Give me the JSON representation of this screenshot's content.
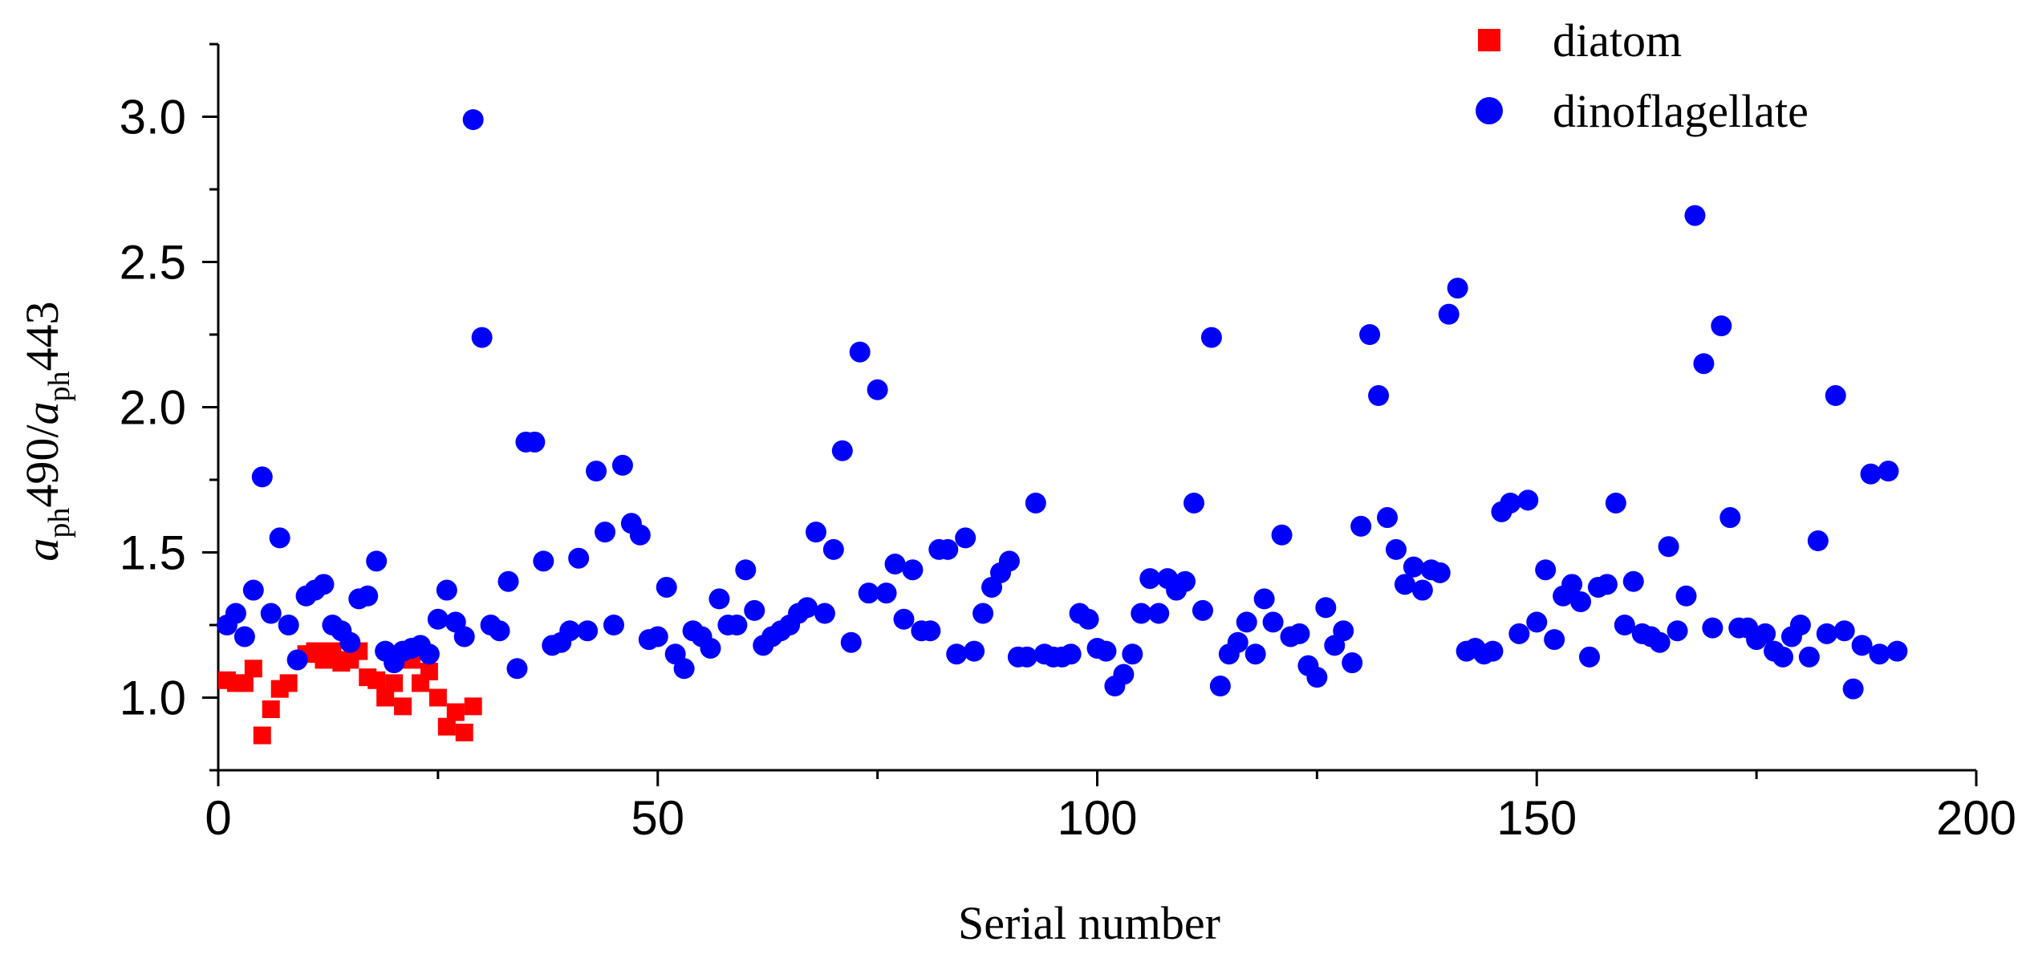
{
  "chart_data": {
    "type": "scatter",
    "xlabel": "Serial number",
    "ylabel": {
      "prefix_italic": "a",
      "prefix_sub": "ph",
      "middle": "490/",
      "denom_italic": "a",
      "denom_sub": "ph",
      "suffix": "443"
    },
    "xlim": [
      0,
      200
    ],
    "ylim": [
      0.75,
      3.25
    ],
    "xticks": [
      0,
      50,
      100,
      150,
      200
    ],
    "xtick_labels": [
      "0",
      "50",
      "100",
      "150",
      "200"
    ],
    "yticks": [
      1.0,
      1.5,
      2.0,
      2.5,
      3.0
    ],
    "ytick_labels": [
      "1.0",
      "1.5",
      "2.0",
      "2.5",
      "3.0"
    ],
    "grid": false,
    "legend_position": "top-right",
    "colors": {
      "diatom": "#ff0000",
      "dinoflagellate": "#0000ff"
    },
    "series": [
      {
        "name": "diatom",
        "marker": "square",
        "color": "#ff0000",
        "points": [
          [
            1,
            1.06
          ],
          [
            2,
            1.05
          ],
          [
            3,
            1.05
          ],
          [
            4,
            1.1
          ],
          [
            5,
            0.87
          ],
          [
            6,
            0.96
          ],
          [
            7,
            1.03
          ],
          [
            8,
            1.05
          ],
          [
            10,
            1.15
          ],
          [
            11,
            1.16
          ],
          [
            12,
            1.13
          ],
          [
            13,
            1.16
          ],
          [
            14,
            1.12
          ],
          [
            15,
            1.13
          ],
          [
            16,
            1.16
          ],
          [
            17,
            1.07
          ],
          [
            18,
            1.06
          ],
          [
            19,
            1.0
          ],
          [
            20,
            1.05
          ],
          [
            21,
            0.97
          ],
          [
            22,
            1.13
          ],
          [
            23,
            1.05
          ],
          [
            24,
            1.09
          ],
          [
            25,
            1.0
          ],
          [
            26,
            0.9
          ],
          [
            27,
            0.95
          ],
          [
            28,
            0.88
          ],
          [
            29,
            0.97
          ]
        ]
      },
      {
        "name": "dinoflagellate",
        "marker": "circle",
        "color": "#0000ff",
        "points": [
          [
            1,
            1.25
          ],
          [
            2,
            1.29
          ],
          [
            3,
            1.21
          ],
          [
            4,
            1.37
          ],
          [
            5,
            1.76
          ],
          [
            6,
            1.29
          ],
          [
            7,
            1.55
          ],
          [
            8,
            1.25
          ],
          [
            9,
            1.13
          ],
          [
            10,
            1.35
          ],
          [
            11,
            1.37
          ],
          [
            12,
            1.39
          ],
          [
            13,
            1.25
          ],
          [
            14,
            1.23
          ],
          [
            15,
            1.19
          ],
          [
            16,
            1.34
          ],
          [
            17,
            1.35
          ],
          [
            18,
            1.47
          ],
          [
            19,
            1.16
          ],
          [
            20,
            1.12
          ],
          [
            21,
            1.16
          ],
          [
            22,
            1.17
          ],
          [
            23,
            1.18
          ],
          [
            24,
            1.15
          ],
          [
            25,
            1.27
          ],
          [
            26,
            1.37
          ],
          [
            27,
            1.26
          ],
          [
            28,
            1.21
          ],
          [
            29,
            2.99
          ],
          [
            30,
            2.24
          ],
          [
            31,
            1.25
          ],
          [
            32,
            1.23
          ],
          [
            33,
            1.4
          ],
          [
            34,
            1.1
          ],
          [
            35,
            1.88
          ],
          [
            36,
            1.88
          ],
          [
            37,
            1.47
          ],
          [
            38,
            1.18
          ],
          [
            39,
            1.19
          ],
          [
            40,
            1.23
          ],
          [
            41,
            1.48
          ],
          [
            42,
            1.23
          ],
          [
            43,
            1.78
          ],
          [
            44,
            1.57
          ],
          [
            45,
            1.25
          ],
          [
            46,
            1.8
          ],
          [
            47,
            1.6
          ],
          [
            48,
            1.56
          ],
          [
            49,
            1.2
          ],
          [
            50,
            1.21
          ],
          [
            51,
            1.38
          ],
          [
            52,
            1.15
          ],
          [
            53,
            1.1
          ],
          [
            54,
            1.23
          ],
          [
            55,
            1.21
          ],
          [
            56,
            1.17
          ],
          [
            57,
            1.34
          ],
          [
            58,
            1.25
          ],
          [
            59,
            1.25
          ],
          [
            60,
            1.44
          ],
          [
            61,
            1.3
          ],
          [
            62,
            1.18
          ],
          [
            63,
            1.21
          ],
          [
            64,
            1.23
          ],
          [
            65,
            1.25
          ],
          [
            66,
            1.29
          ],
          [
            67,
            1.31
          ],
          [
            68,
            1.57
          ],
          [
            69,
            1.29
          ],
          [
            70,
            1.51
          ],
          [
            71,
            1.85
          ],
          [
            72,
            1.19
          ],
          [
            73,
            2.19
          ],
          [
            74,
            1.36
          ],
          [
            75,
            2.06
          ],
          [
            76,
            1.36
          ],
          [
            77,
            1.46
          ],
          [
            78,
            1.27
          ],
          [
            79,
            1.44
          ],
          [
            80,
            1.23
          ],
          [
            81,
            1.23
          ],
          [
            82,
            1.51
          ],
          [
            83,
            1.51
          ],
          [
            84,
            1.15
          ],
          [
            85,
            1.55
          ],
          [
            86,
            1.16
          ],
          [
            87,
            1.29
          ],
          [
            88,
            1.38
          ],
          [
            89,
            1.43
          ],
          [
            90,
            1.47
          ],
          [
            91,
            1.14
          ],
          [
            92,
            1.14
          ],
          [
            93,
            1.67
          ],
          [
            94,
            1.15
          ],
          [
            95,
            1.14
          ],
          [
            96,
            1.14
          ],
          [
            97,
            1.15
          ],
          [
            98,
            1.29
          ],
          [
            99,
            1.27
          ],
          [
            100,
            1.17
          ],
          [
            101,
            1.16
          ],
          [
            102,
            1.04
          ],
          [
            103,
            1.08
          ],
          [
            104,
            1.15
          ],
          [
            105,
            1.29
          ],
          [
            106,
            1.41
          ],
          [
            107,
            1.29
          ],
          [
            108,
            1.41
          ],
          [
            109,
            1.37
          ],
          [
            110,
            1.4
          ],
          [
            111,
            1.67
          ],
          [
            112,
            1.3
          ],
          [
            113,
            2.24
          ],
          [
            114,
            1.04
          ],
          [
            115,
            1.15
          ],
          [
            116,
            1.19
          ],
          [
            117,
            1.26
          ],
          [
            118,
            1.15
          ],
          [
            119,
            1.34
          ],
          [
            120,
            1.26
          ],
          [
            121,
            1.56
          ],
          [
            122,
            1.21
          ],
          [
            123,
            1.22
          ],
          [
            124,
            1.11
          ],
          [
            125,
            1.07
          ],
          [
            126,
            1.31
          ],
          [
            127,
            1.18
          ],
          [
            128,
            1.23
          ],
          [
            129,
            1.12
          ],
          [
            130,
            1.59
          ],
          [
            131,
            2.25
          ],
          [
            132,
            2.04
          ],
          [
            133,
            1.62
          ],
          [
            134,
            1.51
          ],
          [
            135,
            1.39
          ],
          [
            136,
            1.45
          ],
          [
            137,
            1.37
          ],
          [
            138,
            1.44
          ],
          [
            139,
            1.43
          ],
          [
            140,
            2.32
          ],
          [
            141,
            2.41
          ],
          [
            142,
            1.16
          ],
          [
            143,
            1.17
          ],
          [
            144,
            1.15
          ],
          [
            145,
            1.16
          ],
          [
            146,
            1.64
          ],
          [
            147,
            1.67
          ],
          [
            148,
            1.22
          ],
          [
            149,
            1.68
          ],
          [
            150,
            1.26
          ],
          [
            151,
            1.44
          ],
          [
            152,
            1.2
          ],
          [
            153,
            1.35
          ],
          [
            154,
            1.39
          ],
          [
            155,
            1.33
          ],
          [
            156,
            1.14
          ],
          [
            157,
            1.38
          ],
          [
            158,
            1.39
          ],
          [
            159,
            1.67
          ],
          [
            160,
            1.25
          ],
          [
            161,
            1.4
          ],
          [
            162,
            1.22
          ],
          [
            163,
            1.21
          ],
          [
            164,
            1.19
          ],
          [
            165,
            1.52
          ],
          [
            166,
            1.23
          ],
          [
            167,
            1.35
          ],
          [
            168,
            2.66
          ],
          [
            169,
            2.15
          ],
          [
            170,
            1.24
          ],
          [
            171,
            2.28
          ],
          [
            172,
            1.62
          ],
          [
            173,
            1.24
          ],
          [
            174,
            1.24
          ],
          [
            175,
            1.2
          ],
          [
            176,
            1.22
          ],
          [
            177,
            1.16
          ],
          [
            178,
            1.14
          ],
          [
            179,
            1.21
          ],
          [
            180,
            1.25
          ],
          [
            181,
            1.14
          ],
          [
            182,
            1.54
          ],
          [
            183,
            1.22
          ],
          [
            184,
            2.04
          ],
          [
            185,
            1.23
          ],
          [
            186,
            1.03
          ],
          [
            187,
            1.18
          ],
          [
            188,
            1.77
          ],
          [
            189,
            1.15
          ],
          [
            190,
            1.78
          ],
          [
            191,
            1.16
          ]
        ]
      }
    ]
  }
}
